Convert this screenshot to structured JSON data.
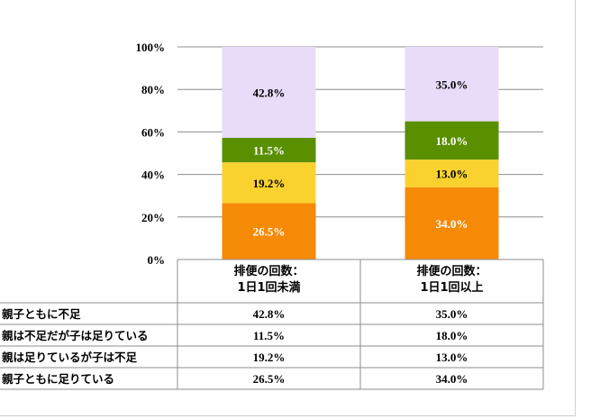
{
  "chart_data": {
    "type": "bar",
    "stacked": true,
    "categories": [
      "排便の回数：\n1日1回未満",
      "排便の回数：\n1日1回以上"
    ],
    "series": [
      {
        "name": "親子ともに足りている",
        "values": [
          26.5,
          34.0
        ],
        "labels": [
          "26.5%",
          "34.0%"
        ],
        "color": "#F58A07",
        "label_color": "#ffffff"
      },
      {
        "name": "親は足りているが子は不足",
        "values": [
          19.2,
          13.0
        ],
        "labels": [
          "19.2%",
          "13.0%"
        ],
        "color": "#F9D230",
        "label_color": "#000000"
      },
      {
        "name": "親は不足だが子は足りている",
        "values": [
          11.5,
          18.0
        ],
        "labels": [
          "11.5%",
          "18.0%"
        ],
        "color": "#5A8F00",
        "label_color": "#ffffff"
      },
      {
        "name": "親子ともに不足",
        "values": [
          42.8,
          35.0
        ],
        "labels": [
          "42.8%",
          "35.0%"
        ],
        "color": "#E8DCF8",
        "label_color": "#000000"
      }
    ],
    "table_row_order": [
      3,
      2,
      1,
      0
    ],
    "ylim": [
      0,
      100
    ],
    "yticks": [
      "0%",
      "20%",
      "40%",
      "60%",
      "80%",
      "100%"
    ],
    "grid": true,
    "legend": "data-table-below"
  }
}
